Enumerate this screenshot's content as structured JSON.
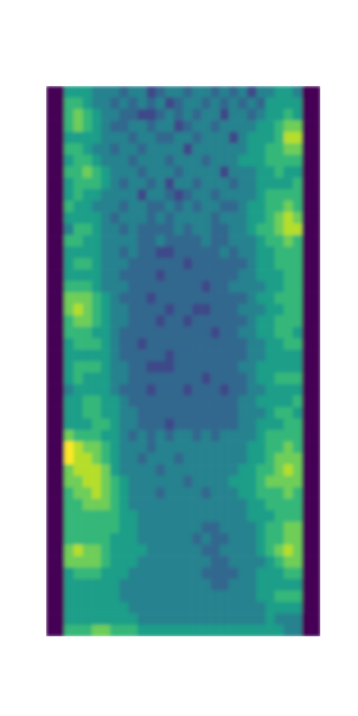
{
  "chart_data": {
    "type": "heatmap",
    "color_range": [
      0,
      9
    ],
    "cells": [
      [
        0,
        0,
        5,
        5,
        5,
        4,
        4,
        4,
        3,
        4,
        4,
        2,
        3,
        4,
        4,
        3,
        4,
        4,
        3,
        4,
        3,
        4,
        2,
        4,
        4,
        5,
        5,
        4,
        0,
        0
      ],
      [
        0,
        0,
        6,
        6,
        5,
        4,
        4,
        3,
        4,
        3,
        4,
        3,
        4,
        2,
        3,
        4,
        4,
        3,
        4,
        3,
        4,
        3,
        4,
        3,
        5,
        5,
        5,
        5,
        0,
        0
      ],
      [
        0,
        0,
        6,
        7,
        6,
        5,
        4,
        4,
        3,
        3,
        2,
        2,
        3,
        4,
        3,
        4,
        3,
        4,
        4,
        2,
        4,
        4,
        3,
        4,
        5,
        5,
        6,
        5,
        0,
        0
      ],
      [
        0,
        0,
        6,
        7,
        6,
        5,
        4,
        3,
        3,
        4,
        4,
        3,
        4,
        4,
        2,
        3,
        4,
        4,
        3,
        4,
        4,
        4,
        4,
        5,
        5,
        6,
        7,
        7,
        0,
        0
      ],
      [
        0,
        0,
        5,
        5,
        5,
        5,
        4,
        4,
        4,
        3,
        4,
        4,
        3,
        3,
        4,
        4,
        3,
        4,
        4,
        4,
        2,
        4,
        5,
        5,
        5,
        6,
        8,
        8,
        0,
        0
      ],
      [
        0,
        0,
        6,
        6,
        5,
        4,
        4,
        3,
        4,
        4,
        3,
        4,
        4,
        4,
        4,
        2,
        4,
        4,
        4,
        4,
        4,
        4,
        5,
        5,
        6,
        6,
        7,
        7,
        0,
        0
      ],
      [
        0,
        0,
        5,
        6,
        6,
        5,
        4,
        4,
        4,
        3,
        4,
        4,
        4,
        3,
        4,
        4,
        4,
        3,
        4,
        4,
        4,
        5,
        5,
        5,
        6,
        6,
        6,
        6,
        0,
        0
      ],
      [
        0,
        0,
        6,
        6,
        7,
        6,
        5,
        4,
        4,
        4,
        3,
        4,
        4,
        4,
        3,
        4,
        4,
        4,
        4,
        2,
        4,
        4,
        4,
        5,
        5,
        6,
        5,
        5,
        0,
        0
      ],
      [
        0,
        0,
        5,
        6,
        6,
        6,
        5,
        4,
        3,
        4,
        4,
        3,
        4,
        2,
        4,
        4,
        3,
        4,
        4,
        4,
        3,
        4,
        4,
        5,
        5,
        5,
        5,
        6,
        0,
        0
      ],
      [
        0,
        0,
        5,
        6,
        5,
        5,
        4,
        4,
        4,
        4,
        2,
        4,
        4,
        3,
        2,
        3,
        4,
        4,
        3,
        4,
        4,
        4,
        4,
        5,
        6,
        6,
        6,
        6,
        0,
        0
      ],
      [
        0,
        0,
        6,
        5,
        5,
        4,
        4,
        4,
        3,
        4,
        4,
        3,
        3,
        4,
        3,
        4,
        3,
        4,
        4,
        3,
        3,
        4,
        5,
        5,
        6,
        6,
        7,
        6,
        0,
        0
      ],
      [
        0,
        0,
        5,
        5,
        5,
        5,
        4,
        3,
        4,
        4,
        4,
        3,
        4,
        3,
        4,
        4,
        4,
        4,
        3,
        4,
        4,
        4,
        5,
        5,
        6,
        7,
        8,
        7,
        0,
        0
      ],
      [
        0,
        0,
        4,
        6,
        6,
        5,
        4,
        4,
        3,
        4,
        3,
        3,
        3,
        3,
        4,
        3,
        4,
        4,
        3,
        3,
        4,
        4,
        5,
        6,
        6,
        7,
        8,
        8,
        0,
        0
      ],
      [
        0,
        0,
        6,
        6,
        5,
        5,
        4,
        4,
        4,
        4,
        3,
        3,
        4,
        3,
        3,
        3,
        3,
        4,
        3,
        3,
        4,
        4,
        4,
        5,
        6,
        6,
        7,
        6,
        0,
        0
      ],
      [
        0,
        0,
        5,
        5,
        5,
        5,
        4,
        4,
        3,
        4,
        3,
        3,
        2,
        2,
        3,
        3,
        3,
        3,
        3,
        4,
        3,
        4,
        4,
        5,
        5,
        6,
        6,
        6,
        0,
        0
      ],
      [
        0,
        0,
        5,
        6,
        6,
        5,
        4,
        4,
        4,
        3,
        3,
        3,
        3,
        3,
        3,
        2,
        3,
        3,
        3,
        3,
        3,
        3,
        4,
        5,
        5,
        6,
        6,
        6,
        0,
        0
      ],
      [
        0,
        0,
        5,
        5,
        5,
        5,
        4,
        4,
        3,
        3,
        3,
        3,
        2,
        3,
        3,
        3,
        3,
        3,
        3,
        3,
        3,
        4,
        4,
        5,
        5,
        5,
        6,
        6,
        0,
        0
      ],
      [
        0,
        0,
        6,
        6,
        6,
        5,
        4,
        4,
        4,
        3,
        3,
        3,
        3,
        3,
        3,
        3,
        3,
        2,
        3,
        3,
        4,
        4,
        4,
        4,
        5,
        5,
        6,
        6,
        0,
        0
      ],
      [
        0,
        0,
        7,
        7,
        7,
        6,
        5,
        4,
        3,
        3,
        3,
        2,
        3,
        3,
        3,
        3,
        3,
        3,
        3,
        3,
        3,
        3,
        4,
        5,
        5,
        6,
        6,
        6,
        0,
        0
      ],
      [
        0,
        0,
        7,
        8,
        7,
        6,
        5,
        4,
        4,
        3,
        3,
        3,
        3,
        2,
        3,
        3,
        2,
        2,
        3,
        3,
        3,
        4,
        4,
        4,
        5,
        5,
        6,
        6,
        0,
        0
      ],
      [
        0,
        0,
        6,
        7,
        7,
        6,
        5,
        4,
        4,
        3,
        3,
        3,
        2,
        3,
        3,
        2,
        3,
        3,
        3,
        3,
        3,
        3,
        4,
        5,
        5,
        6,
        6,
        6,
        0,
        0
      ],
      [
        0,
        0,
        6,
        6,
        6,
        5,
        5,
        4,
        3,
        3,
        3,
        3,
        3,
        3,
        3,
        3,
        3,
        3,
        2,
        3,
        3,
        4,
        4,
        5,
        5,
        6,
        6,
        5,
        0,
        0
      ],
      [
        0,
        0,
        5,
        6,
        6,
        6,
        5,
        4,
        3,
        3,
        2,
        3,
        3,
        3,
        3,
        3,
        3,
        3,
        3,
        3,
        3,
        3,
        4,
        4,
        5,
        5,
        6,
        6,
        0,
        0
      ],
      [
        0,
        0,
        5,
        5,
        5,
        5,
        5,
        4,
        3,
        3,
        3,
        3,
        3,
        2,
        3,
        3,
        3,
        3,
        3,
        3,
        3,
        3,
        4,
        4,
        5,
        5,
        5,
        5,
        0,
        0
      ],
      [
        0,
        0,
        5,
        6,
        6,
        6,
        5,
        4,
        4,
        3,
        3,
        2,
        2,
        2,
        3,
        3,
        3,
        3,
        3,
        3,
        3,
        4,
        4,
        5,
        5,
        5,
        5,
        5,
        0,
        0
      ],
      [
        0,
        0,
        5,
        6,
        5,
        5,
        5,
        4,
        4,
        3,
        3,
        3,
        3,
        3,
        3,
        3,
        3,
        2,
        3,
        3,
        3,
        3,
        4,
        5,
        5,
        6,
        6,
        6,
        0,
        0
      ],
      [
        0,
        0,
        4,
        5,
        5,
        5,
        5,
        4,
        3,
        3,
        3,
        2,
        3,
        3,
        3,
        2,
        3,
        3,
        3,
        2,
        3,
        3,
        4,
        4,
        5,
        5,
        5,
        5,
        0,
        0
      ],
      [
        0,
        0,
        5,
        5,
        6,
        6,
        5,
        5,
        4,
        3,
        3,
        3,
        3,
        3,
        3,
        3,
        3,
        3,
        3,
        3,
        3,
        4,
        4,
        5,
        5,
        5,
        5,
        6,
        0,
        0
      ],
      [
        0,
        0,
        5,
        5,
        6,
        6,
        5,
        5,
        4,
        4,
        3,
        3,
        3,
        3,
        3,
        3,
        3,
        3,
        3,
        3,
        3,
        4,
        4,
        4,
        5,
        6,
        6,
        5,
        0,
        0
      ],
      [
        0,
        0,
        5,
        5,
        5,
        6,
        6,
        5,
        4,
        4,
        3,
        3,
        3,
        2,
        3,
        3,
        3,
        3,
        3,
        3,
        3,
        4,
        4,
        5,
        5,
        5,
        6,
        6,
        0,
        0
      ],
      [
        0,
        0,
        7,
        6,
        6,
        6,
        5,
        5,
        4,
        3,
        4,
        3,
        4,
        3,
        4,
        4,
        3,
        4,
        3,
        4,
        4,
        4,
        4,
        5,
        6,
        6,
        6,
        6,
        0,
        0
      ],
      [
        0,
        0,
        9,
        8,
        7,
        7,
        6,
        5,
        4,
        4,
        4,
        3,
        4,
        4,
        4,
        4,
        4,
        4,
        4,
        4,
        4,
        4,
        5,
        5,
        6,
        6,
        7,
        6,
        0,
        0
      ],
      [
        0,
        0,
        9,
        8,
        8,
        7,
        6,
        5,
        4,
        4,
        3,
        4,
        4,
        4,
        3,
        4,
        4,
        4,
        4,
        4,
        4,
        4,
        5,
        5,
        6,
        7,
        7,
        7,
        0,
        0
      ],
      [
        0,
        0,
        7,
        8,
        8,
        8,
        7,
        5,
        4,
        4,
        4,
        4,
        3,
        4,
        4,
        4,
        4,
        4,
        4,
        4,
        4,
        5,
        5,
        6,
        6,
        7,
        8,
        7,
        0,
        0
      ],
      [
        0,
        0,
        7,
        7,
        8,
        8,
        7,
        6,
        5,
        4,
        4,
        4,
        4,
        4,
        4,
        3,
        4,
        4,
        4,
        4,
        5,
        5,
        5,
        6,
        7,
        7,
        7,
        7,
        0,
        0
      ],
      [
        0,
        0,
        6,
        7,
        7,
        8,
        7,
        6,
        5,
        4,
        4,
        4,
        3,
        4,
        4,
        4,
        4,
        3,
        4,
        4,
        4,
        5,
        5,
        6,
        6,
        6,
        7,
        6,
        0,
        0
      ],
      [
        0,
        0,
        6,
        6,
        7,
        7,
        7,
        6,
        5,
        4,
        4,
        4,
        4,
        4,
        4,
        4,
        4,
        4,
        4,
        4,
        4,
        4,
        5,
        5,
        6,
        6,
        6,
        6,
        0,
        0
      ],
      [
        0,
        0,
        6,
        6,
        6,
        6,
        6,
        6,
        5,
        5,
        4,
        4,
        4,
        4,
        4,
        4,
        4,
        4,
        4,
        4,
        4,
        4,
        5,
        5,
        5,
        6,
        6,
        6,
        0,
        0
      ],
      [
        0,
        0,
        6,
        6,
        6,
        6,
        6,
        6,
        5,
        5,
        4,
        4,
        4,
        4,
        4,
        4,
        4,
        3,
        3,
        4,
        4,
        4,
        4,
        5,
        6,
        6,
        7,
        7,
        0,
        0
      ],
      [
        0,
        0,
        6,
        6,
        6,
        6,
        6,
        5,
        5,
        5,
        4,
        4,
        4,
        4,
        4,
        4,
        3,
        4,
        3,
        3,
        4,
        4,
        4,
        5,
        6,
        6,
        7,
        7,
        0,
        0
      ],
      [
        0,
        0,
        7,
        8,
        7,
        7,
        6,
        5,
        5,
        5,
        5,
        4,
        4,
        4,
        4,
        4,
        4,
        3,
        3,
        4,
        4,
        4,
        4,
        5,
        6,
        7,
        8,
        7,
        0,
        0
      ],
      [
        0,
        0,
        7,
        7,
        7,
        7,
        6,
        5,
        5,
        5,
        4,
        4,
        4,
        4,
        4,
        4,
        4,
        4,
        3,
        3,
        4,
        4,
        4,
        4,
        5,
        6,
        7,
        7,
        0,
        0
      ],
      [
        0,
        0,
        5,
        6,
        6,
        6,
        5,
        5,
        5,
        4,
        4,
        4,
        4,
        4,
        4,
        4,
        4,
        3,
        3,
        3,
        3,
        4,
        4,
        5,
        5,
        5,
        6,
        6,
        0,
        0
      ],
      [
        0,
        0,
        5,
        5,
        5,
        5,
        5,
        5,
        4,
        4,
        4,
        4,
        4,
        4,
        4,
        4,
        4,
        4,
        3,
        3,
        4,
        4,
        4,
        5,
        5,
        5,
        5,
        5,
        0,
        0
      ],
      [
        0,
        0,
        5,
        5,
        5,
        5,
        5,
        5,
        4,
        4,
        4,
        4,
        4,
        4,
        4,
        4,
        4,
        4,
        4,
        4,
        4,
        4,
        4,
        5,
        5,
        6,
        6,
        6,
        0,
        0
      ],
      [
        0,
        0,
        5,
        5,
        5,
        5,
        5,
        5,
        5,
        4,
        4,
        4,
        4,
        4,
        4,
        4,
        4,
        4,
        4,
        4,
        4,
        4,
        4,
        4,
        5,
        5,
        5,
        5,
        0,
        0
      ],
      [
        0,
        0,
        5,
        5,
        5,
        5,
        5,
        5,
        5,
        5,
        4,
        4,
        4,
        4,
        4,
        4,
        4,
        4,
        4,
        4,
        4,
        4,
        4,
        4,
        5,
        4,
        4,
        4,
        0,
        0
      ],
      [
        0,
        0,
        6,
        6,
        6,
        7,
        7,
        6,
        6,
        6,
        5,
        5,
        5,
        5,
        5,
        5,
        5,
        5,
        5,
        5,
        5,
        5,
        5,
        5,
        5,
        5,
        4,
        4,
        0,
        0
      ]
    ]
  }
}
